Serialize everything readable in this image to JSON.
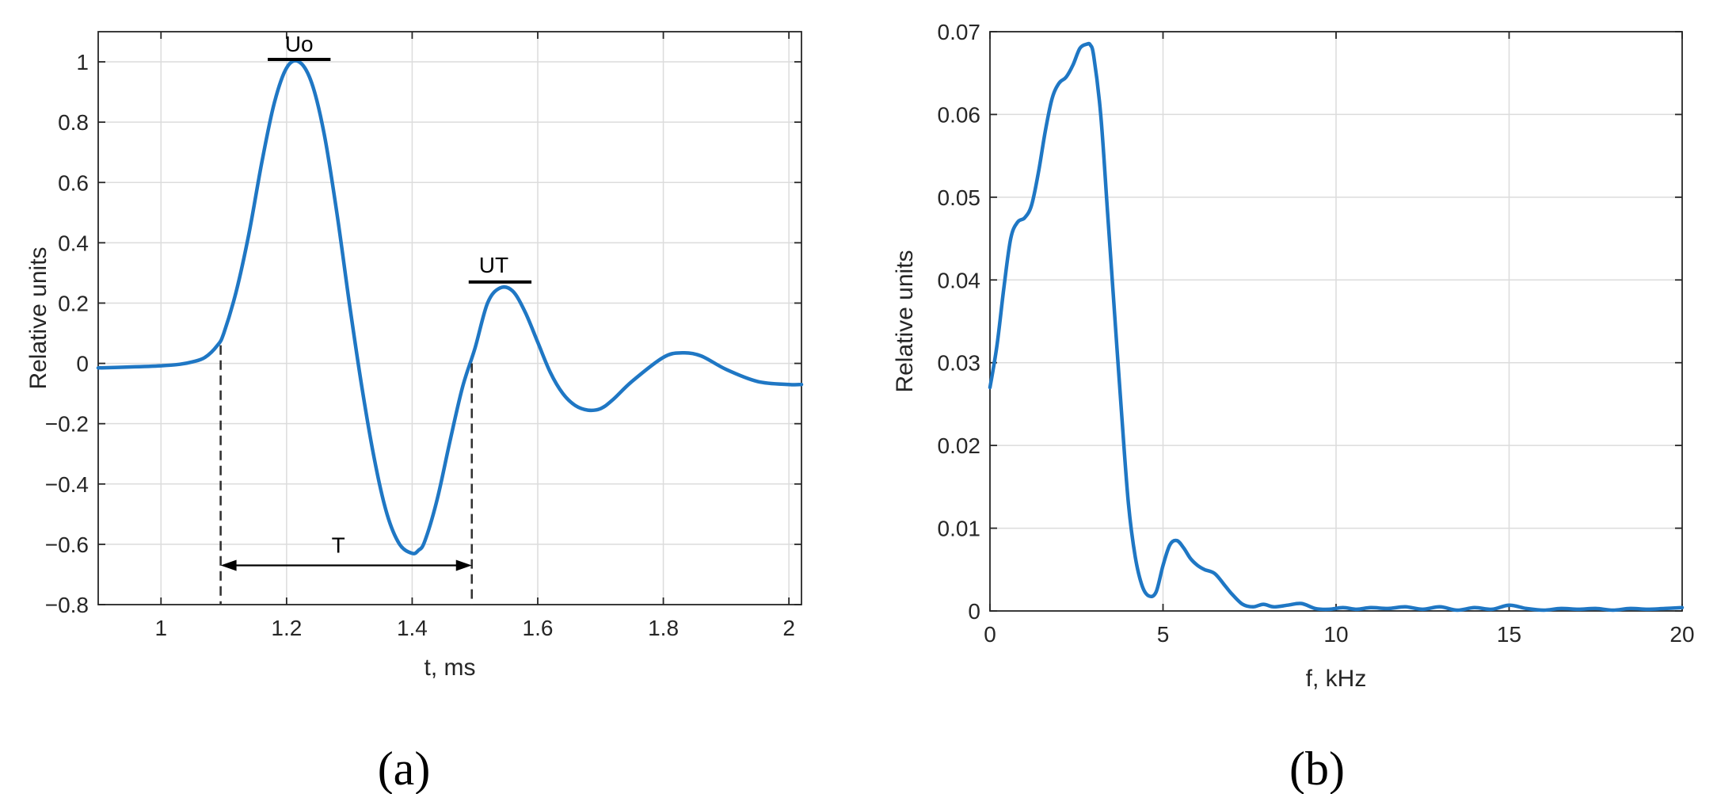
{
  "colors": {
    "line": "#1f77c4",
    "annotation": "#000000"
  },
  "panels": {
    "a_label": "(a)",
    "b_label": "(b)"
  },
  "chart_data": [
    {
      "type": "line",
      "panel": "(a)",
      "xlabel": "t, ms",
      "ylabel": "Relative units",
      "xlim": [
        0.9,
        2.02
      ],
      "ylim": [
        -0.8,
        1.1
      ],
      "xticks": [
        1,
        1.2,
        1.4,
        1.6,
        1.8,
        2
      ],
      "yticks": [
        -0.8,
        -0.6,
        -0.4,
        -0.2,
        0,
        0.2,
        0.4,
        0.6,
        0.8,
        1
      ],
      "xtick_labels": [
        "1",
        "1.2",
        "1.4",
        "1.6",
        "1.8",
        "2"
      ],
      "ytick_labels": [
        "−0.8",
        "−0.6",
        "−0.4",
        "−0.2",
        "0",
        "0.2",
        "0.4",
        "0.6",
        "0.8",
        "1"
      ],
      "grid": true,
      "series": [
        {
          "x": [
            0.9,
            0.95,
            1.0,
            1.03,
            1.05,
            1.07,
            1.09,
            1.1,
            1.12,
            1.14,
            1.16,
            1.18,
            1.2,
            1.22,
            1.24,
            1.26,
            1.28,
            1.3,
            1.32,
            1.34,
            1.36,
            1.38,
            1.4,
            1.41,
            1.42,
            1.44,
            1.46,
            1.48,
            1.5,
            1.52,
            1.54,
            1.56,
            1.58,
            1.6,
            1.62,
            1.64,
            1.66,
            1.68,
            1.7,
            1.72,
            1.75,
            1.8,
            1.83,
            1.86,
            1.9,
            1.95,
            2.0,
            2.02
          ],
          "y": [
            -0.015,
            -0.012,
            -0.008,
            -0.003,
            0.005,
            0.02,
            0.06,
            0.1,
            0.24,
            0.43,
            0.66,
            0.86,
            0.98,
            1.0,
            0.93,
            0.76,
            0.5,
            0.2,
            -0.08,
            -0.32,
            -0.5,
            -0.6,
            -0.63,
            -0.62,
            -0.59,
            -0.45,
            -0.26,
            -0.08,
            0.05,
            0.2,
            0.25,
            0.24,
            0.17,
            0.07,
            -0.03,
            -0.1,
            -0.14,
            -0.155,
            -0.15,
            -0.12,
            -0.06,
            0.02,
            0.035,
            0.025,
            -0.02,
            -0.06,
            -0.07,
            -0.07
          ]
        }
      ],
      "annotations": {
        "peak_label": "Uo",
        "peak_value": 1.0,
        "peak_x_range": [
          1.17,
          1.27
        ],
        "second_peak_label": "UT",
        "second_peak_value": 0.27,
        "second_peak_x_range": [
          1.49,
          1.59
        ],
        "period_label": "T",
        "period_start": 1.095,
        "period_end": 1.495,
        "arrow_y": -0.67
      }
    },
    {
      "type": "line",
      "panel": "(b)",
      "xlabel": "f, kHz",
      "ylabel": "Relative units",
      "xlim": [
        0,
        20
      ],
      "ylim": [
        0,
        0.07
      ],
      "xticks": [
        0,
        5,
        10,
        15,
        20
      ],
      "yticks": [
        0,
        0.01,
        0.02,
        0.03,
        0.04,
        0.05,
        0.06,
        0.07
      ],
      "xtick_labels": [
        "0",
        "5",
        "10",
        "15",
        "20"
      ],
      "ytick_labels": [
        "0",
        "0.01",
        "0.02",
        "0.03",
        "0.04",
        "0.05",
        "0.06",
        "0.07"
      ],
      "grid": true,
      "series": [
        {
          "x": [
            0,
            0.2,
            0.4,
            0.6,
            0.8,
            1.0,
            1.2,
            1.4,
            1.6,
            1.8,
            2.0,
            2.2,
            2.4,
            2.6,
            2.8,
            2.9,
            3.0,
            3.2,
            3.4,
            3.6,
            3.8,
            4.0,
            4.2,
            4.4,
            4.6,
            4.8,
            5.0,
            5.2,
            5.4,
            5.6,
            5.8,
            6.0,
            6.2,
            6.5,
            6.8,
            7.0,
            7.3,
            7.6,
            7.9,
            8.2,
            8.6,
            9.0,
            9.4,
            9.8,
            10.2,
            10.6,
            11.0,
            11.5,
            12.0,
            12.5,
            13.0,
            13.5,
            14.0,
            14.5,
            15.0,
            15.5,
            16.0,
            16.5,
            17.0,
            17.5,
            18.0,
            18.5,
            19.0,
            19.5,
            20.0
          ],
          "y": [
            0.027,
            0.032,
            0.039,
            0.045,
            0.047,
            0.0475,
            0.049,
            0.053,
            0.058,
            0.062,
            0.0638,
            0.0645,
            0.066,
            0.068,
            0.0685,
            0.0684,
            0.067,
            0.06,
            0.048,
            0.036,
            0.024,
            0.013,
            0.0065,
            0.003,
            0.0018,
            0.0023,
            0.0055,
            0.008,
            0.0085,
            0.0076,
            0.0063,
            0.0055,
            0.005,
            0.0045,
            0.003,
            0.002,
            0.0008,
            0.0005,
            0.0008,
            0.0005,
            0.0007,
            0.0009,
            0.0003,
            0.0002,
            0.0004,
            0.0002,
            0.0004,
            0.0003,
            0.0005,
            0.0002,
            0.0005,
            0.0001,
            0.0004,
            0.0002,
            0.0007,
            0.0003,
            0.0001,
            0.0003,
            0.0002,
            0.0003,
            0.0001,
            0.0003,
            0.0002,
            0.0003,
            0.0004
          ]
        }
      ]
    }
  ]
}
